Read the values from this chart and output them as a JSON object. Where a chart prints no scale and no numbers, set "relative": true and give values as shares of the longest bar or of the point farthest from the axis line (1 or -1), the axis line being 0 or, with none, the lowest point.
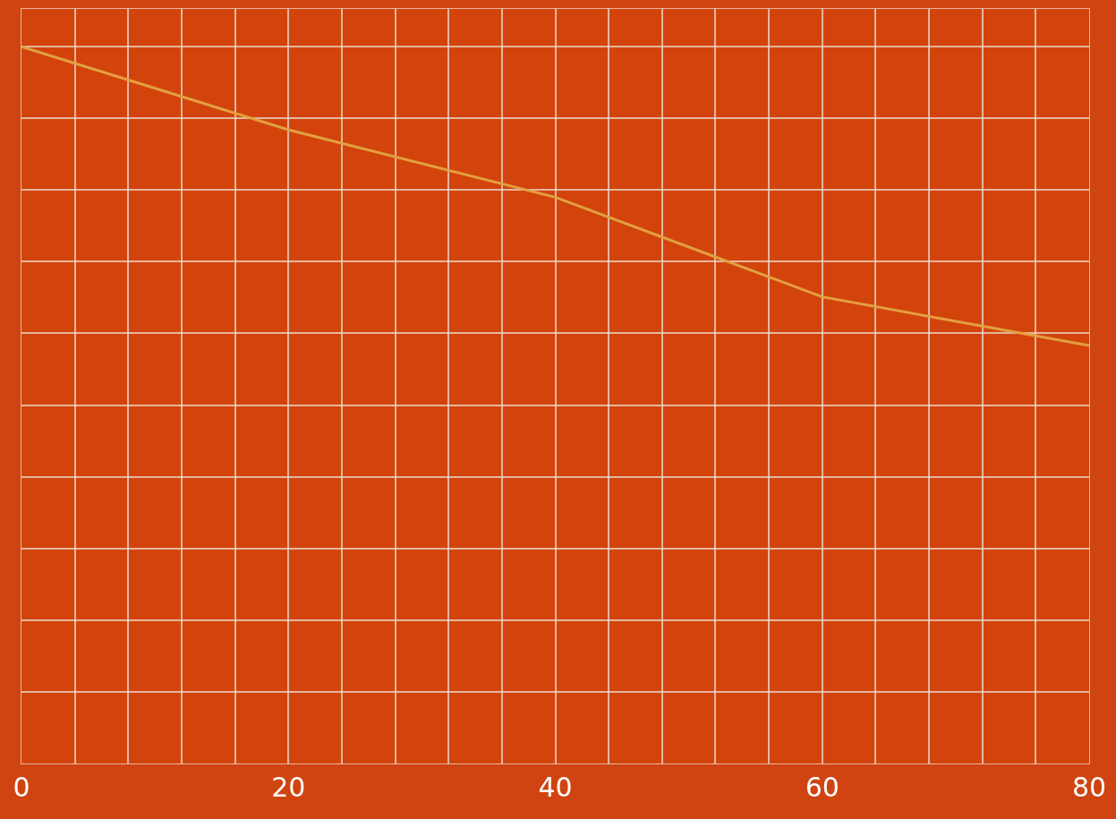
{
  "chart_data": {
    "type": "line",
    "relative": true,
    "x": [
      0,
      20,
      40,
      60,
      80
    ],
    "series": [
      {
        "color": "#e3a040",
        "values": [
          1,
          0.884,
          0.79,
          0.651,
          0.583
        ]
      }
    ],
    "xlim": [
      0,
      80
    ],
    "xticks": [
      0,
      {
        "value": 4,
        "label": null
      },
      {
        "value": 8,
        "label": null
      },
      {
        "value": 12,
        "label": null
      },
      {
        "value": 16,
        "label": null
      },
      20,
      {
        "value": 24,
        "label": null
      },
      {
        "value": 28,
        "label": null
      },
      {
        "value": 32,
        "label": null
      },
      {
        "value": 36,
        "label": null
      },
      40,
      {
        "value": 44,
        "label": null
      },
      {
        "value": 48,
        "label": null
      },
      {
        "value": 52,
        "label": null
      },
      {
        "value": 56,
        "label": null
      },
      60,
      {
        "value": 64,
        "label": null
      },
      {
        "value": 68,
        "label": null
      },
      {
        "value": 72,
        "label": null
      },
      {
        "value": 76,
        "label": null
      },
      80
    ],
    "grid": true,
    "tick_labels": "x",
    "line_style": "solid",
    "marker": "none"
  }
}
